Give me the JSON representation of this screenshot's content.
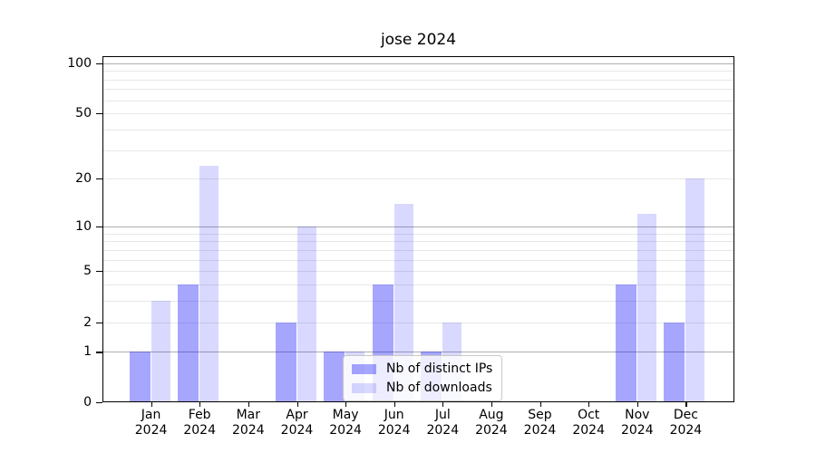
{
  "chart_data": {
    "type": "bar",
    "title": "jose 2024",
    "xlabel": "",
    "ylabel": "",
    "year": "2024",
    "categories": [
      "Jan",
      "Feb",
      "Mar",
      "Apr",
      "May",
      "Jun",
      "Jul",
      "Aug",
      "Sep",
      "Oct",
      "Nov",
      "Dec"
    ],
    "series": [
      {
        "name": "Nb of distinct IPs",
        "color": "rgba(0,0,255,0.35)",
        "color_on_white_hex": "#a6a6ff",
        "values": [
          1,
          4,
          0,
          2,
          1,
          4,
          1,
          0,
          0,
          0,
          4,
          2
        ]
      },
      {
        "name": "Nb of downloads",
        "color": "rgba(0,0,255,0.15)",
        "color_on_white_hex": "#d9d9ff",
        "values": [
          3,
          24,
          0,
          10,
          1,
          14,
          2,
          0,
          0,
          0,
          12,
          20
        ]
      }
    ],
    "y_axis": {
      "scale": "log10(1+v)",
      "tick_labels": [
        "0",
        "1",
        "2",
        "5",
        "10",
        "20",
        "50",
        "100"
      ],
      "tick_values": [
        0,
        1,
        2,
        5,
        10,
        20,
        50,
        100
      ],
      "ylim": [
        0,
        110
      ]
    },
    "grid": "both",
    "grid_major_values": [
      1,
      10,
      100
    ],
    "grid_minor_values": [
      2,
      3,
      4,
      5,
      6,
      7,
      8,
      9,
      20,
      30,
      40,
      50,
      60,
      70,
      80,
      90
    ],
    "legend": {
      "position": "lower-center",
      "entries": [
        "Nb of distinct IPs",
        "Nb of downloads"
      ]
    },
    "colors": {
      "grid_major": "#aeaeae",
      "grid_minor": "#e7e7e7",
      "axis": "#000000",
      "background": "#ffffff"
    }
  }
}
